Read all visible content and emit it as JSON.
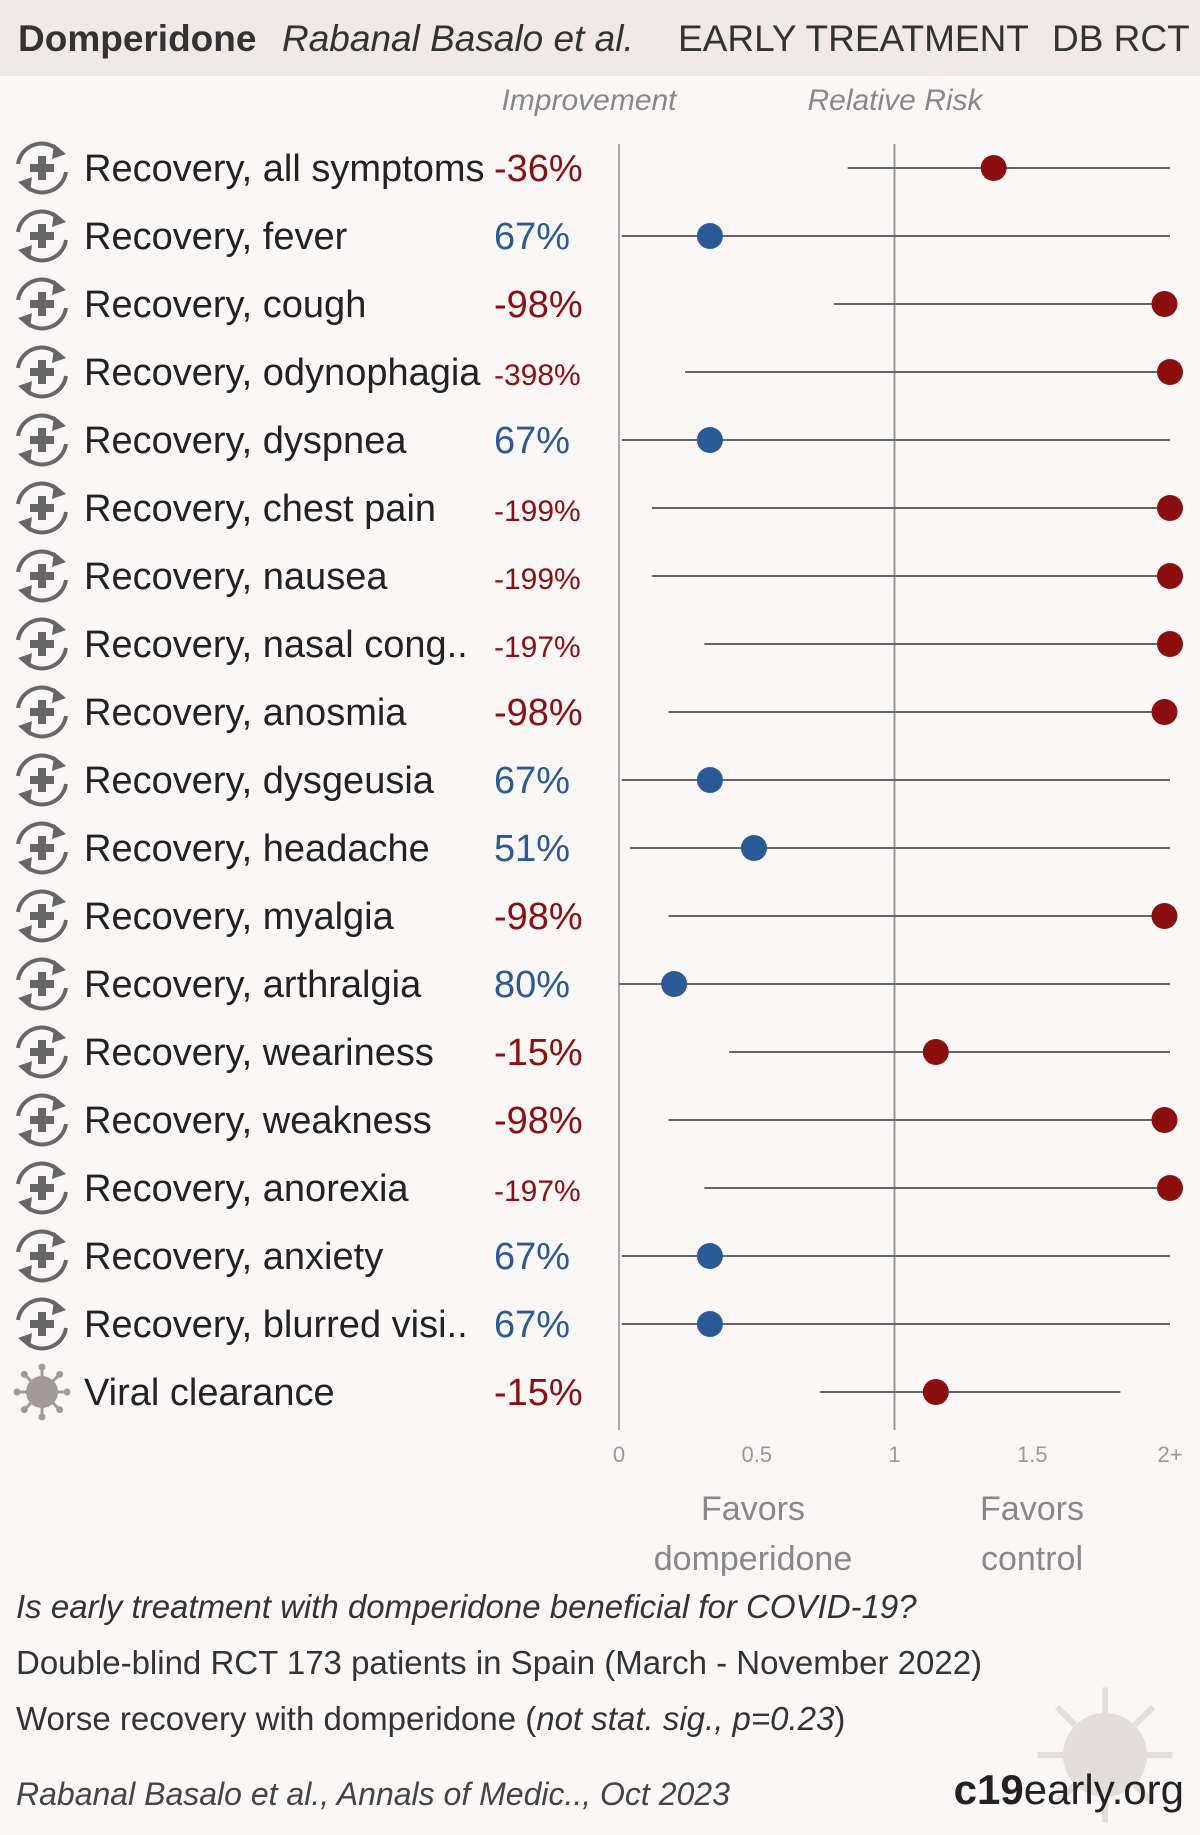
{
  "header": {
    "drug": "Domperidone",
    "authors": "Rabanal Basalo et al.",
    "stage": "EARLY TREATMENT",
    "design": "DB RCT"
  },
  "colors": {
    "favor_treatment": "#2a5a96",
    "favor_control": "#8b0f0f",
    "background": "#fbf7f6",
    "header_bg": "#f1e9e7"
  },
  "chart_data": {
    "type": "forest",
    "column_headers": {
      "improvement": "Improvement",
      "relative_risk": "Relative Risk"
    },
    "xlim": [
      0,
      2
    ],
    "x_ticks": [
      {
        "value": 0,
        "label": "0"
      },
      {
        "value": 0.5,
        "label": "0.5"
      },
      {
        "value": 1,
        "label": "1"
      },
      {
        "value": 1.5,
        "label": "1.5"
      },
      {
        "value": 2,
        "label": "2+"
      }
    ],
    "reference_line": 1,
    "favors_left": [
      "Favors",
      "domperidone"
    ],
    "favors_right": [
      "Favors",
      "control"
    ],
    "rows": [
      {
        "icon": "recovery-icon",
        "label": "Recovery, all symptoms",
        "improvement": "-36%",
        "rr": 1.36,
        "ci": [
          0.83,
          2.0
        ]
      },
      {
        "icon": "recovery-icon",
        "label": "Recovery, fever",
        "improvement": "67%",
        "rr": 0.33,
        "ci": [
          0.01,
          2.0
        ]
      },
      {
        "icon": "recovery-icon",
        "label": "Recovery, cough",
        "improvement": "-98%",
        "rr": 1.98,
        "ci": [
          0.78,
          2.0
        ]
      },
      {
        "icon": "recovery-icon",
        "label": "Recovery, odynophagia",
        "improvement": "-398%",
        "rr": 2.0,
        "ci": [
          0.24,
          2.0
        ]
      },
      {
        "icon": "recovery-icon",
        "label": "Recovery, dyspnea",
        "improvement": "67%",
        "rr": 0.33,
        "ci": [
          0.01,
          2.0
        ]
      },
      {
        "icon": "recovery-icon",
        "label": "Recovery, chest pain",
        "improvement": "-199%",
        "rr": 2.0,
        "ci": [
          0.12,
          2.0
        ]
      },
      {
        "icon": "recovery-icon",
        "label": "Recovery, nausea",
        "improvement": "-199%",
        "rr": 2.0,
        "ci": [
          0.12,
          2.0
        ]
      },
      {
        "icon": "recovery-icon",
        "label": "Recovery, nasal cong..",
        "improvement": "-197%",
        "rr": 2.0,
        "ci": [
          0.31,
          2.0
        ]
      },
      {
        "icon": "recovery-icon",
        "label": "Recovery, anosmia",
        "improvement": "-98%",
        "rr": 1.98,
        "ci": [
          0.18,
          2.0
        ]
      },
      {
        "icon": "recovery-icon",
        "label": "Recovery, dysgeusia",
        "improvement": "67%",
        "rr": 0.33,
        "ci": [
          0.01,
          2.0
        ]
      },
      {
        "icon": "recovery-icon",
        "label": "Recovery, headache",
        "improvement": "51%",
        "rr": 0.49,
        "ci": [
          0.04,
          2.0
        ]
      },
      {
        "icon": "recovery-icon",
        "label": "Recovery, myalgia",
        "improvement": "-98%",
        "rr": 1.98,
        "ci": [
          0.18,
          2.0
        ]
      },
      {
        "icon": "recovery-icon",
        "label": "Recovery, arthralgia",
        "improvement": "80%",
        "rr": 0.2,
        "ci": [
          0.0,
          2.0
        ]
      },
      {
        "icon": "recovery-icon",
        "label": "Recovery, weariness",
        "improvement": "-15%",
        "rr": 1.15,
        "ci": [
          0.4,
          2.0
        ]
      },
      {
        "icon": "recovery-icon",
        "label": "Recovery, weakness",
        "improvement": "-98%",
        "rr": 1.98,
        "ci": [
          0.18,
          2.0
        ]
      },
      {
        "icon": "recovery-icon",
        "label": "Recovery, anorexia",
        "improvement": "-197%",
        "rr": 2.0,
        "ci": [
          0.31,
          2.0
        ]
      },
      {
        "icon": "recovery-icon",
        "label": "Recovery, anxiety",
        "improvement": "67%",
        "rr": 0.33,
        "ci": [
          0.01,
          2.0
        ]
      },
      {
        "icon": "recovery-icon",
        "label": "Recovery, blurred visi..",
        "improvement": "67%",
        "rr": 0.33,
        "ci": [
          0.01,
          2.0
        ]
      },
      {
        "icon": "virus-icon",
        "label": "Viral clearance",
        "improvement": "-15%",
        "rr": 1.15,
        "ci": [
          0.73,
          1.82
        ]
      }
    ]
  },
  "footer": {
    "question": "Is early treatment with domperidone beneficial for COVID-19?",
    "line2": "Double-blind RCT 173 patients in Spain (March - November 2022)",
    "line3_main": "Worse recovery with domperidone (",
    "line3_italic": "not stat. sig., p=0.23",
    "line3_end": ")",
    "citation": "Rabanal Basalo et al., Annals of Medic.., Oct 2023",
    "brand_bold": "c19",
    "brand_rest": "early.org"
  }
}
